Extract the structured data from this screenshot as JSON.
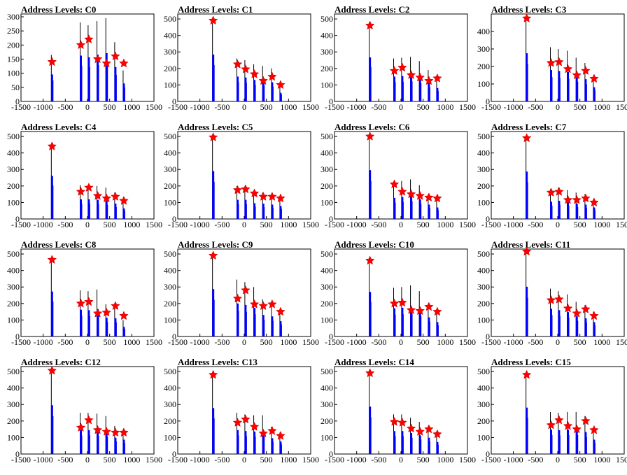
{
  "figure": {
    "x_ticks": [
      -1500,
      -1000,
      -500,
      0,
      500,
      1000,
      1500
    ],
    "x_range": [
      -1500,
      1500
    ]
  },
  "chart_data": [
    {
      "type": "bar",
      "title": "Address Levels: C0",
      "xlim": [
        -1500,
        1500
      ],
      "ylim": [
        0,
        310
      ],
      "y_ticks": [
        0,
        50,
        100,
        150,
        200,
        250,
        300
      ],
      "bins": [
        {
          "x": -800,
          "peak": 165
        },
        {
          "x": -150,
          "peak": 280
        },
        {
          "x": 30,
          "peak": 270
        },
        {
          "x": 230,
          "peak": 285
        },
        {
          "x": 430,
          "peak": 295
        },
        {
          "x": 630,
          "peak": 210
        },
        {
          "x": 820,
          "peak": 110
        }
      ],
      "markers": [
        {
          "x": -800,
          "y": 140
        },
        {
          "x": -150,
          "y": 200
        },
        {
          "x": 30,
          "y": 220
        },
        {
          "x": 230,
          "y": 150
        },
        {
          "x": 430,
          "y": 135
        },
        {
          "x": 630,
          "y": 160
        },
        {
          "x": 820,
          "y": 135
        }
      ]
    },
    {
      "type": "bar",
      "title": "Address Levels: C1",
      "xlim": [
        -1500,
        1500
      ],
      "ylim": [
        0,
        530
      ],
      "y_ticks": [
        0,
        100,
        200,
        300,
        400,
        500
      ],
      "bins": [
        {
          "x": -700,
          "peak": 490
        },
        {
          "x": -150,
          "peak": 260
        },
        {
          "x": 30,
          "peak": 250
        },
        {
          "x": 230,
          "peak": 225
        },
        {
          "x": 430,
          "peak": 215
        },
        {
          "x": 630,
          "peak": 200
        },
        {
          "x": 820,
          "peak": 90
        }
      ],
      "markers": [
        {
          "x": -700,
          "y": 490
        },
        {
          "x": -150,
          "y": 225
        },
        {
          "x": 30,
          "y": 195
        },
        {
          "x": 230,
          "y": 165
        },
        {
          "x": 430,
          "y": 125
        },
        {
          "x": 630,
          "y": 150
        },
        {
          "x": 820,
          "y": 100
        }
      ]
    },
    {
      "type": "bar",
      "title": "Address Levels: C2",
      "xlim": [
        -1500,
        1500
      ],
      "ylim": [
        0,
        530
      ],
      "y_ticks": [
        0,
        100,
        200,
        300,
        400,
        500
      ],
      "bins": [
        {
          "x": -700,
          "peak": 460
        },
        {
          "x": -150,
          "peak": 260
        },
        {
          "x": 30,
          "peak": 265
        },
        {
          "x": 230,
          "peak": 270
        },
        {
          "x": 430,
          "peak": 245
        },
        {
          "x": 630,
          "peak": 190
        },
        {
          "x": 820,
          "peak": 140
        }
      ],
      "markers": [
        {
          "x": -700,
          "y": 460
        },
        {
          "x": -150,
          "y": 185
        },
        {
          "x": 30,
          "y": 205
        },
        {
          "x": 230,
          "y": 160
        },
        {
          "x": 430,
          "y": 145
        },
        {
          "x": 630,
          "y": 125
        },
        {
          "x": 820,
          "y": 140
        }
      ]
    },
    {
      "type": "bar",
      "title": "Address Levels: C3",
      "xlim": [
        -1500,
        1500
      ],
      "ylim": [
        0,
        500
      ],
      "y_ticks": [
        0,
        100,
        200,
        300,
        400
      ],
      "bins": [
        {
          "x": -700,
          "peak": 475
        },
        {
          "x": -150,
          "peak": 310
        },
        {
          "x": 30,
          "peak": 300
        },
        {
          "x": 230,
          "peak": 290
        },
        {
          "x": 430,
          "peak": 250
        },
        {
          "x": 630,
          "peak": 220
        },
        {
          "x": 820,
          "peak": 140
        }
      ],
      "markers": [
        {
          "x": -700,
          "y": 475
        },
        {
          "x": -150,
          "y": 220
        },
        {
          "x": 30,
          "y": 225
        },
        {
          "x": 230,
          "y": 185
        },
        {
          "x": 430,
          "y": 150
        },
        {
          "x": 630,
          "y": 175
        },
        {
          "x": 820,
          "y": 130
        }
      ]
    },
    {
      "type": "bar",
      "title": "Address Levels: C4",
      "xlim": [
        -1500,
        1500
      ],
      "ylim": [
        0,
        530
      ],
      "y_ticks": [
        0,
        100,
        200,
        300,
        400,
        500
      ],
      "bins": [
        {
          "x": -800,
          "peak": 450
        },
        {
          "x": -150,
          "peak": 205
        },
        {
          "x": 30,
          "peak": 205
        },
        {
          "x": 230,
          "peak": 200
        },
        {
          "x": 430,
          "peak": 190
        },
        {
          "x": 630,
          "peak": 160
        },
        {
          "x": 820,
          "peak": 110
        }
      ],
      "markers": [
        {
          "x": -800,
          "y": 440
        },
        {
          "x": -150,
          "y": 165
        },
        {
          "x": 30,
          "y": 190
        },
        {
          "x": 230,
          "y": 140
        },
        {
          "x": 430,
          "y": 125
        },
        {
          "x": 630,
          "y": 135
        },
        {
          "x": 820,
          "y": 110
        }
      ]
    },
    {
      "type": "bar",
      "title": "Address Levels: C5",
      "xlim": [
        -1500,
        1500
      ],
      "ylim": [
        0,
        530
      ],
      "y_ticks": [
        0,
        100,
        200,
        300,
        400,
        500
      ],
      "bins": [
        {
          "x": -700,
          "peak": 500
        },
        {
          "x": -150,
          "peak": 200
        },
        {
          "x": 30,
          "peak": 200
        },
        {
          "x": 230,
          "peak": 165
        },
        {
          "x": 430,
          "peak": 160
        },
        {
          "x": 630,
          "peak": 150
        },
        {
          "x": 820,
          "peak": 135
        }
      ],
      "markers": [
        {
          "x": -700,
          "y": 495
        },
        {
          "x": -150,
          "y": 175
        },
        {
          "x": 30,
          "y": 180
        },
        {
          "x": 230,
          "y": 155
        },
        {
          "x": 430,
          "y": 135
        },
        {
          "x": 630,
          "y": 135
        },
        {
          "x": 820,
          "y": 125
        }
      ]
    },
    {
      "type": "bar",
      "title": "Address Levels: C6",
      "xlim": [
        -1500,
        1500
      ],
      "ylim": [
        0,
        530
      ],
      "y_ticks": [
        0,
        100,
        200,
        300,
        400,
        500
      ],
      "bins": [
        {
          "x": -700,
          "peak": 510
        },
        {
          "x": -150,
          "peak": 220
        },
        {
          "x": 30,
          "peak": 230
        },
        {
          "x": 230,
          "peak": 240
        },
        {
          "x": 430,
          "peak": 205
        },
        {
          "x": 630,
          "peak": 150
        },
        {
          "x": 820,
          "peak": 120
        }
      ],
      "markers": [
        {
          "x": -700,
          "y": 500
        },
        {
          "x": -150,
          "y": 210
        },
        {
          "x": 30,
          "y": 165
        },
        {
          "x": 230,
          "y": 150
        },
        {
          "x": 430,
          "y": 140
        },
        {
          "x": 630,
          "y": 130
        },
        {
          "x": 820,
          "y": 125
        }
      ]
    },
    {
      "type": "bar",
      "title": "Address Levels: C7",
      "xlim": [
        -1500,
        1500
      ],
      "ylim": [
        0,
        530
      ],
      "y_ticks": [
        0,
        100,
        200,
        300,
        400,
        500
      ],
      "bins": [
        {
          "x": -700,
          "peak": 495
        },
        {
          "x": -150,
          "peak": 180
        },
        {
          "x": 30,
          "peak": 190
        },
        {
          "x": 230,
          "peak": 175
        },
        {
          "x": 430,
          "peak": 160
        },
        {
          "x": 630,
          "peak": 150
        },
        {
          "x": 820,
          "peak": 120
        }
      ],
      "markers": [
        {
          "x": -700,
          "y": 490
        },
        {
          "x": -150,
          "y": 160
        },
        {
          "x": 30,
          "y": 165
        },
        {
          "x": 230,
          "y": 115
        },
        {
          "x": 430,
          "y": 115
        },
        {
          "x": 630,
          "y": 125
        },
        {
          "x": 820,
          "y": 100
        }
      ]
    },
    {
      "type": "bar",
      "title": "Address Levels: C8",
      "xlim": [
        -1500,
        1500
      ],
      "ylim": [
        0,
        530
      ],
      "y_ticks": [
        0,
        100,
        200,
        300,
        400,
        500
      ],
      "bins": [
        {
          "x": -800,
          "peak": 470
        },
        {
          "x": -150,
          "peak": 280
        },
        {
          "x": 30,
          "peak": 275
        },
        {
          "x": 230,
          "peak": 285
        },
        {
          "x": 430,
          "peak": 195
        },
        {
          "x": 630,
          "peak": 190
        },
        {
          "x": 820,
          "peak": 100
        }
      ],
      "markers": [
        {
          "x": -800,
          "y": 465
        },
        {
          "x": -150,
          "y": 200
        },
        {
          "x": 30,
          "y": 210
        },
        {
          "x": 230,
          "y": 140
        },
        {
          "x": 430,
          "y": 145
        },
        {
          "x": 630,
          "y": 185
        },
        {
          "x": 820,
          "y": 125
        }
      ]
    },
    {
      "type": "bar",
      "title": "Address Levels: C9",
      "xlim": [
        -1500,
        1500
      ],
      "ylim": [
        0,
        530
      ],
      "y_ticks": [
        0,
        100,
        200,
        300,
        400,
        500
      ],
      "bins": [
        {
          "x": -700,
          "peak": 495
        },
        {
          "x": -150,
          "peak": 345
        },
        {
          "x": 30,
          "peak": 330
        },
        {
          "x": 230,
          "peak": 300
        },
        {
          "x": 430,
          "peak": 225
        },
        {
          "x": 630,
          "peak": 210
        },
        {
          "x": 820,
          "peak": 160
        }
      ],
      "markers": [
        {
          "x": -700,
          "y": 490
        },
        {
          "x": -150,
          "y": 230
        },
        {
          "x": 30,
          "y": 280
        },
        {
          "x": 230,
          "y": 195
        },
        {
          "x": 430,
          "y": 185
        },
        {
          "x": 630,
          "y": 195
        },
        {
          "x": 820,
          "y": 150
        }
      ]
    },
    {
      "type": "bar",
      "title": "Address Levels: C10",
      "xlim": [
        -1500,
        1500
      ],
      "ylim": [
        0,
        530
      ],
      "y_ticks": [
        0,
        100,
        200,
        300,
        400,
        500
      ],
      "bins": [
        {
          "x": -700,
          "peak": 465
        },
        {
          "x": -150,
          "peak": 295
        },
        {
          "x": 30,
          "peak": 300
        },
        {
          "x": 230,
          "peak": 310
        },
        {
          "x": 430,
          "peak": 275
        },
        {
          "x": 630,
          "peak": 200
        },
        {
          "x": 820,
          "peak": 150
        }
      ],
      "markers": [
        {
          "x": -700,
          "y": 460
        },
        {
          "x": -150,
          "y": 200
        },
        {
          "x": 30,
          "y": 205
        },
        {
          "x": 230,
          "y": 160
        },
        {
          "x": 430,
          "y": 155
        },
        {
          "x": 630,
          "y": 180
        },
        {
          "x": 820,
          "y": 150
        }
      ]
    },
    {
      "type": "bar",
      "title": "Address Levels: C11",
      "xlim": [
        -1500,
        1500
      ],
      "ylim": [
        0,
        530
      ],
      "y_ticks": [
        0,
        100,
        200,
        300,
        400,
        500
      ],
      "bins": [
        {
          "x": -700,
          "peak": 520
        },
        {
          "x": -150,
          "peak": 290
        },
        {
          "x": 30,
          "peak": 275
        },
        {
          "x": 230,
          "peak": 255
        },
        {
          "x": 430,
          "peak": 210
        },
        {
          "x": 630,
          "peak": 190
        },
        {
          "x": 820,
          "peak": 150
        }
      ],
      "markers": [
        {
          "x": -700,
          "y": 515
        },
        {
          "x": -150,
          "y": 220
        },
        {
          "x": 30,
          "y": 225
        },
        {
          "x": 230,
          "y": 170
        },
        {
          "x": 430,
          "y": 140
        },
        {
          "x": 630,
          "y": 165
        },
        {
          "x": 820,
          "y": 125
        }
      ]
    },
    {
      "type": "bar",
      "title": "Address Levels: C12",
      "xlim": [
        -1500,
        1500
      ],
      "ylim": [
        0,
        530
      ],
      "y_ticks": [
        0,
        100,
        200,
        300,
        400,
        500
      ],
      "bins": [
        {
          "x": -800,
          "peak": 510
        },
        {
          "x": -150,
          "peak": 250
        },
        {
          "x": 30,
          "peak": 250
        },
        {
          "x": 230,
          "peak": 245
        },
        {
          "x": 430,
          "peak": 230
        },
        {
          "x": 630,
          "peak": 170
        },
        {
          "x": 820,
          "peak": 150
        }
      ],
      "markers": [
        {
          "x": -800,
          "y": 505
        },
        {
          "x": -150,
          "y": 160
        },
        {
          "x": 30,
          "y": 205
        },
        {
          "x": 230,
          "y": 145
        },
        {
          "x": 430,
          "y": 135
        },
        {
          "x": 630,
          "y": 130
        },
        {
          "x": 820,
          "y": 130
        }
      ]
    },
    {
      "type": "bar",
      "title": "Address Levels: C13",
      "xlim": [
        -1500,
        1500
      ],
      "ylim": [
        0,
        530
      ],
      "y_ticks": [
        0,
        100,
        200,
        300,
        400,
        500
      ],
      "bins": [
        {
          "x": -700,
          "peak": 480
        },
        {
          "x": -150,
          "peak": 250
        },
        {
          "x": 30,
          "peak": 240
        },
        {
          "x": 230,
          "peak": 235
        },
        {
          "x": 430,
          "peak": 235
        },
        {
          "x": 630,
          "peak": 165
        },
        {
          "x": 820,
          "peak": 130
        }
      ],
      "markers": [
        {
          "x": -700,
          "y": 480
        },
        {
          "x": -150,
          "y": 190
        },
        {
          "x": 30,
          "y": 210
        },
        {
          "x": 230,
          "y": 165
        },
        {
          "x": 430,
          "y": 125
        },
        {
          "x": 630,
          "y": 140
        },
        {
          "x": 820,
          "y": 110
        }
      ]
    },
    {
      "type": "bar",
      "title": "Address Levels: C14",
      "xlim": [
        -1500,
        1500
      ],
      "ylim": [
        0,
        530
      ],
      "y_ticks": [
        0,
        100,
        200,
        300,
        400,
        500
      ],
      "bins": [
        {
          "x": -700,
          "peak": 495
        },
        {
          "x": -150,
          "peak": 240
        },
        {
          "x": 30,
          "peak": 240
        },
        {
          "x": 230,
          "peak": 220
        },
        {
          "x": 430,
          "peak": 195
        },
        {
          "x": 630,
          "peak": 170
        },
        {
          "x": 820,
          "peak": 125
        }
      ],
      "markers": [
        {
          "x": -700,
          "y": 490
        },
        {
          "x": -150,
          "y": 195
        },
        {
          "x": 30,
          "y": 190
        },
        {
          "x": 230,
          "y": 155
        },
        {
          "x": 430,
          "y": 135
        },
        {
          "x": 630,
          "y": 150
        },
        {
          "x": 820,
          "y": 120
        }
      ]
    },
    {
      "type": "bar",
      "title": "Address Levels: C15",
      "xlim": [
        -1500,
        1500
      ],
      "ylim": [
        0,
        530
      ],
      "y_ticks": [
        0,
        100,
        200,
        300,
        400,
        500
      ],
      "bins": [
        {
          "x": -700,
          "peak": 485
        },
        {
          "x": -150,
          "peak": 255
        },
        {
          "x": 30,
          "peak": 250
        },
        {
          "x": 230,
          "peak": 255
        },
        {
          "x": 430,
          "peak": 255
        },
        {
          "x": 630,
          "peak": 230
        },
        {
          "x": 820,
          "peak": 150
        }
      ],
      "markers": [
        {
          "x": -700,
          "y": 480
        },
        {
          "x": -150,
          "y": 175
        },
        {
          "x": 30,
          "y": 205
        },
        {
          "x": 230,
          "y": 170
        },
        {
          "x": 430,
          "y": 150
        },
        {
          "x": 630,
          "y": 200
        },
        {
          "x": 820,
          "y": 145
        }
      ]
    }
  ],
  "colors": {
    "bars": "#0000ff",
    "bar_tops": "#000000",
    "markers": "#ff0000",
    "frame": "#000000"
  }
}
